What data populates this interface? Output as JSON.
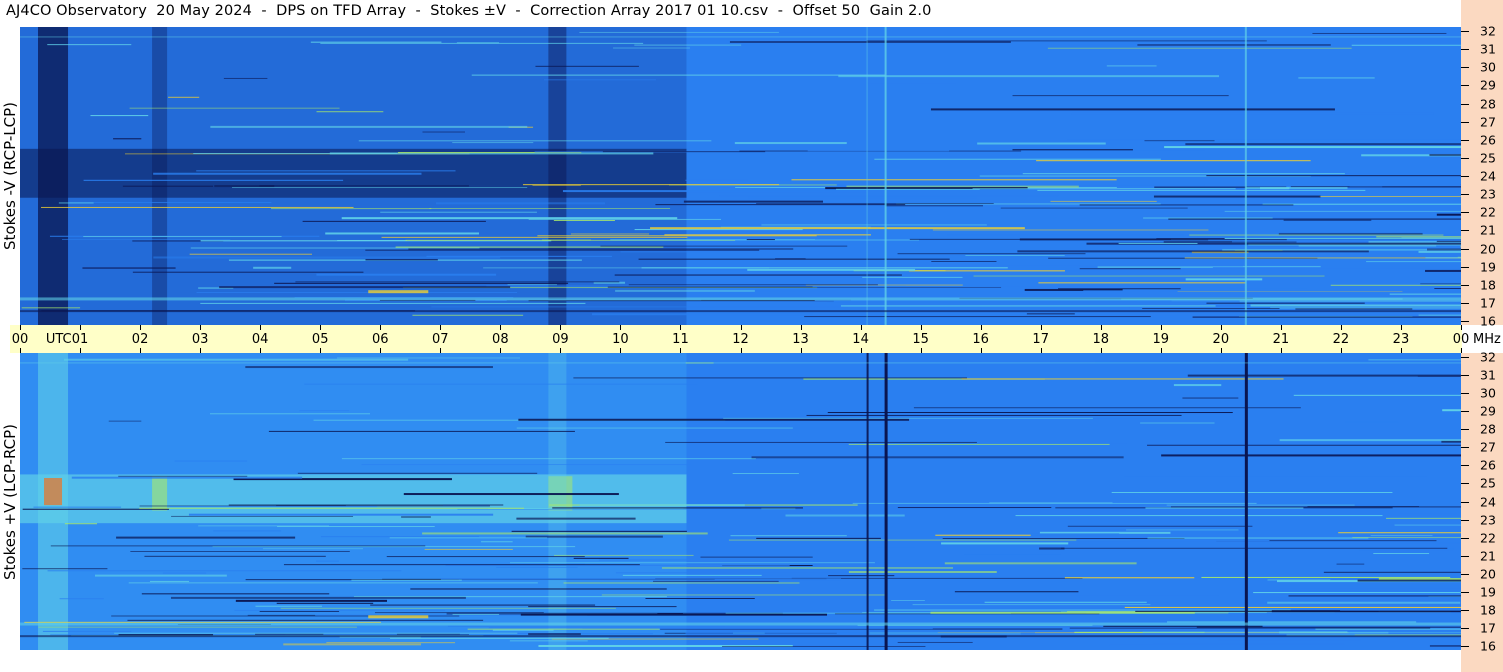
{
  "header": {
    "title": "AJ4CO Observatory  20 May 2024  -  DPS on TFD Array  -  Stokes ±V  -  Correction Array 2017 01 10.csv  -  Offset 50  Gain 2.0"
  },
  "chart_data": [
    {
      "type": "heatmap",
      "ylabel": "Stokes -V (RCP-LCP)",
      "x_ticks": [
        "00",
        "01",
        "02",
        "03",
        "04",
        "05",
        "06",
        "07",
        "08",
        "09",
        "10",
        "11",
        "12",
        "13",
        "14",
        "15",
        "16",
        "17",
        "18",
        "19",
        "20",
        "21",
        "22",
        "23",
        "00"
      ],
      "x_unit": "UTC",
      "y_ticks": [
        "16",
        "17",
        "18",
        "19",
        "20",
        "21",
        "22",
        "23",
        "24",
        "25",
        "26",
        "27",
        "28",
        "29",
        "30",
        "31",
        "32"
      ],
      "y_unit": "MHz",
      "xlim": [
        0,
        24
      ],
      "ylim": [
        16,
        32
      ],
      "colormap": [
        "#0a1550",
        "#0f2f8f",
        "#1a5ae0",
        "#2a7ff0",
        "#3da8f5",
        "#5fd0e8",
        "#a8e86a",
        "#f0d030",
        "#f07020"
      ],
      "base_color": "#2a7ff0"
    },
    {
      "type": "heatmap",
      "ylabel": "Stokes +V (LCP-RCP)",
      "x_ticks": [
        "00",
        "01",
        "02",
        "03",
        "04",
        "05",
        "06",
        "07",
        "08",
        "09",
        "10",
        "11",
        "12",
        "13",
        "14",
        "15",
        "16",
        "17",
        "18",
        "19",
        "20",
        "21",
        "22",
        "23",
        "00"
      ],
      "x_unit": "UTC",
      "y_ticks": [
        "16",
        "17",
        "18",
        "19",
        "20",
        "21",
        "22",
        "23",
        "24",
        "25",
        "26",
        "27",
        "28",
        "29",
        "30",
        "31",
        "32"
      ],
      "y_unit": "MHz",
      "xlim": [
        0,
        24
      ],
      "ylim": [
        16,
        32
      ],
      "colormap": [
        "#0a1550",
        "#0f2f8f",
        "#1a5ae0",
        "#2a7ff0",
        "#3da8f5",
        "#5fd0e8",
        "#a8e86a",
        "#f0d030",
        "#f07020"
      ],
      "base_color": "#2a7ff0"
    }
  ]
}
